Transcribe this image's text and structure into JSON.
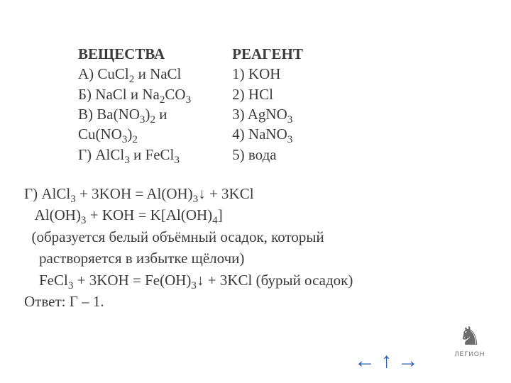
{
  "colors": {
    "text": "#3b3b3b",
    "background": "#ffffff",
    "navArrow": "#2a5db0",
    "logo": "#6b6b6b"
  },
  "font": {
    "family": "Georgia",
    "baseSizePt": 16,
    "lineHeight": 1.4
  },
  "left": {
    "header": "ВЕЩЕСТВА",
    "a_pre": "А) CuCl",
    "a_sub": "2",
    "a_post": "  и NaCl",
    "b_pre": "Б) NaCl и Na",
    "b_sub1": "2",
    "b_mid": "CO",
    "b_sub2": "3",
    "v_pre": "В) Ba(NO",
    "v_sub1": "3",
    "v_mid": ")",
    "v_sub2": "2",
    "v_post": " и",
    "v2_pre": "Cu(NO",
    "v2_sub1": "3",
    "v2_mid": ")",
    "v2_sub2": "2",
    "g_pre": "Г) AlCl",
    "g_sub1": "3",
    "g_mid": " и FeCl",
    "g_sub2": "3"
  },
  "right": {
    "header": "РЕАГЕНТ",
    "r1": "1) KOH",
    "r2": "2) HCl",
    "r3_pre": "3) AgNO",
    "r3_sub": "3",
    "spacer": " ",
    "r4_pre": "4) NaNO",
    "r4_sub": "3",
    "r5": "5) вода"
  },
  "solution": {
    "l1_a": "Г) AlCl",
    "l1_s1": "3",
    "l1_b": " + 3KOH = Al(OH)",
    "l1_s2": "3",
    "l1_c": "↓ + 3KCl",
    "l2_a": "   Al(OH)",
    "l2_s1": "3",
    "l2_b": " + KOH = K[Al(OH)",
    "l2_s2": "4",
    "l2_c": "]",
    "l3": "  (образуется белый объёмный осадок, который",
    "l4": "    растворяется в избытке щёлочи)",
    "l5_a": "    FeCl",
    "l5_s1": "3",
    "l5_b": " + 3KOH = Fe(OH)",
    "l5_s2": "3",
    "l5_c": "↓ + 3KCl (бурый осадок)",
    "l6": "Ответ: Г – 1."
  },
  "nav": {
    "prev": "←",
    "up": "↑",
    "next": "→"
  },
  "logo": {
    "glyph": "♞",
    "brand": "ЛЕГИОН"
  }
}
